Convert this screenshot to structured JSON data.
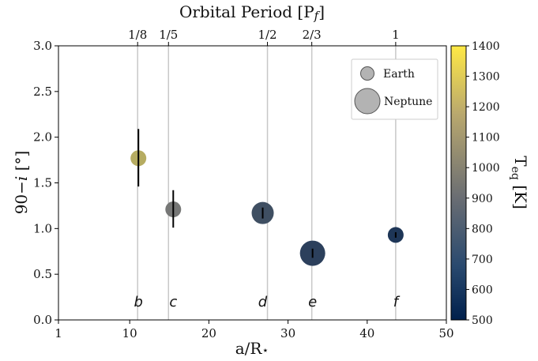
{
  "chart_data": {
    "type": "scatter",
    "title": "",
    "xlabel": "a/R★",
    "ylabel": "90−i [°]",
    "top_xlabel": "Orbital Period [Pf]",
    "xlim": [
      1,
      50
    ],
    "ylim": [
      0.0,
      3.0
    ],
    "x_ticks": [
      1,
      10,
      20,
      30,
      40,
      50
    ],
    "y_ticks": [
      "0.0",
      "0.5",
      "1.0",
      "1.5",
      "2.0",
      "2.5",
      "3.0"
    ],
    "top_ticks": [
      {
        "label": "1/8",
        "x": 11.0
      },
      {
        "label": "1/5",
        "x": 14.9
      },
      {
        "label": "1/2",
        "x": 27.4
      },
      {
        "label": "2/3",
        "x": 33.0
      },
      {
        "label": "1",
        "x": 43.6
      }
    ],
    "grid": "vertical lines at orbital period ticks",
    "points": [
      {
        "name": "b",
        "x": 11.1,
        "y": 1.77,
        "yerr_low": 0.31,
        "yerr_high": 0.32,
        "teq": 1150,
        "size": "small"
      },
      {
        "name": "c",
        "x": 15.5,
        "y": 1.21,
        "yerr_low": 0.2,
        "yerr_high": 0.21,
        "teq": 930,
        "size": "small"
      },
      {
        "name": "d",
        "x": 26.8,
        "y": 1.17,
        "yerr_low": 0.06,
        "yerr_high": 0.06,
        "teq": 730,
        "size": "medium"
      },
      {
        "name": "e",
        "x": 33.1,
        "y": 0.73,
        "yerr_low": 0.05,
        "yerr_high": 0.05,
        "teq": 660,
        "size": "large"
      },
      {
        "name": "f",
        "x": 43.6,
        "y": 0.93,
        "yerr_low": 0.03,
        "yerr_high": 0.03,
        "teq": 610,
        "size": "small"
      }
    ],
    "legend": {
      "placement": "upper-right",
      "entries": [
        {
          "label": "Earth",
          "size": "small"
        },
        {
          "label": "Neptune",
          "size": "large"
        }
      ]
    },
    "colorbar": {
      "label": "Teq [K]",
      "range": [
        500,
        1400
      ],
      "ticks": [
        500,
        600,
        700,
        800,
        900,
        1000,
        1100,
        1200,
        1300,
        1400
      ],
      "colormap": "cividis",
      "color_low": "#00204c",
      "color_mid": "#7c7b78",
      "color_high": "#ffe945"
    }
  }
}
